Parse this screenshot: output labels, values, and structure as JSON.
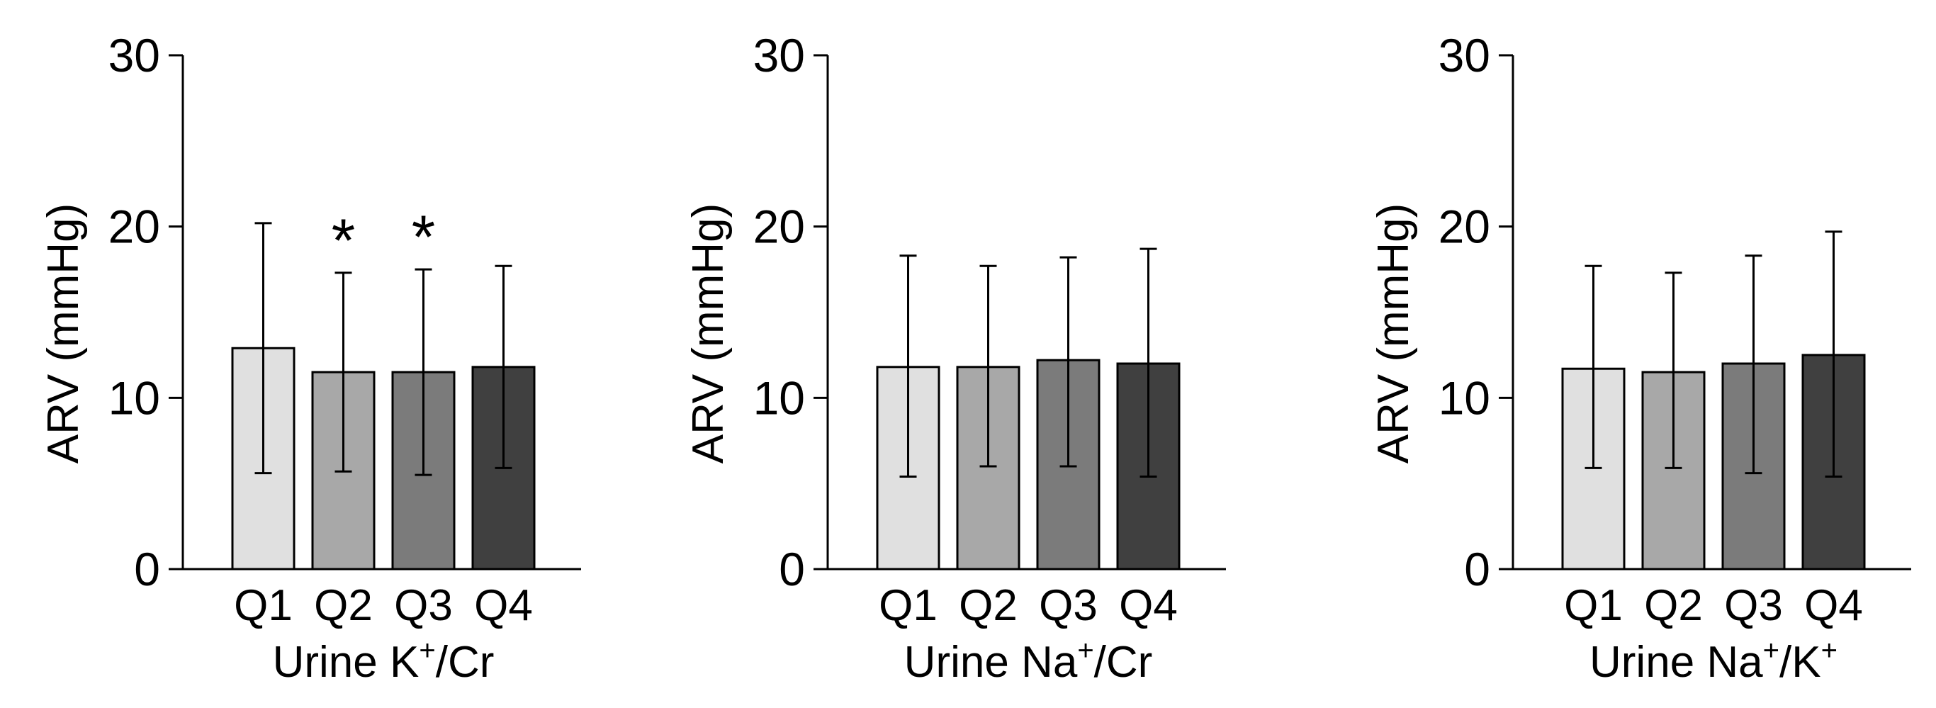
{
  "colors": {
    "bars": [
      "#e0e0e0",
      "#a8a8a8",
      "#7b7b7b",
      "#404040"
    ],
    "axis": "#000000"
  },
  "chart_data": [
    {
      "type": "bar",
      "categories": [
        "Q1",
        "Q2",
        "Q3",
        "Q4"
      ],
      "values": [
        12.9,
        11.5,
        11.5,
        11.8
      ],
      "error_lower": [
        5.6,
        5.7,
        5.5,
        5.9
      ],
      "error_upper": [
        20.2,
        17.3,
        17.5,
        17.7
      ],
      "significance": [
        "",
        "*",
        "*",
        ""
      ],
      "ylabel": "ARV (mmHg)",
      "xlabel": {
        "parts": [
          {
            "t": "Urine K"
          },
          {
            "t": "+",
            "sup": true
          },
          {
            "t": "/Cr"
          }
        ]
      },
      "ylim": [
        0,
        30
      ],
      "yticks": [
        0,
        10,
        20,
        30
      ],
      "grid": false,
      "legend": "none"
    },
    {
      "type": "bar",
      "categories": [
        "Q1",
        "Q2",
        "Q3",
        "Q4"
      ],
      "values": [
        11.8,
        11.8,
        12.2,
        12.0
      ],
      "error_lower": [
        5.4,
        6.0,
        6.0,
        5.4
      ],
      "error_upper": [
        18.3,
        17.7,
        18.2,
        18.7
      ],
      "significance": [
        "",
        "",
        "",
        ""
      ],
      "ylabel": "ARV (mmHg)",
      "xlabel": {
        "parts": [
          {
            "t": "Urine Na"
          },
          {
            "t": "+",
            "sup": true
          },
          {
            "t": "/Cr"
          }
        ]
      },
      "ylim": [
        0,
        30
      ],
      "yticks": [
        0,
        10,
        20,
        30
      ],
      "grid": false,
      "legend": "none"
    },
    {
      "type": "bar",
      "categories": [
        "Q1",
        "Q2",
        "Q3",
        "Q4"
      ],
      "values": [
        11.7,
        11.5,
        12.0,
        12.5
      ],
      "error_lower": [
        5.9,
        5.9,
        5.6,
        5.4
      ],
      "error_upper": [
        17.7,
        17.3,
        18.3,
        19.7
      ],
      "significance": [
        "",
        "",
        "",
        ""
      ],
      "ylabel": "ARV (mmHg)",
      "xlabel": {
        "parts": [
          {
            "t": "Urine Na"
          },
          {
            "t": "+",
            "sup": true
          },
          {
            "t": "/K"
          },
          {
            "t": "+",
            "sup": true
          }
        ]
      },
      "ylim": [
        0,
        30
      ],
      "yticks": [
        0,
        10,
        20,
        30
      ],
      "grid": false,
      "legend": "none"
    }
  ]
}
